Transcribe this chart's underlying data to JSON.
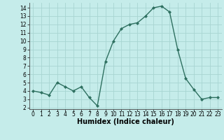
{
  "x": [
    0,
    1,
    2,
    3,
    4,
    5,
    6,
    7,
    8,
    9,
    10,
    11,
    12,
    13,
    14,
    15,
    16,
    17,
    18,
    19,
    20,
    21,
    22,
    23
  ],
  "y": [
    4,
    3.8,
    3.5,
    5,
    4.5,
    4,
    4.5,
    3.2,
    2.2,
    7.5,
    10,
    11.5,
    12,
    12.2,
    13,
    14,
    14.2,
    13.5,
    9,
    5.5,
    4.2,
    3,
    3.2,
    3.2
  ],
  "line_color": "#2e7060",
  "marker": "D",
  "marker_size": 2.0,
  "bg_color": "#c5ecea",
  "grid_color": "#a8d5d2",
  "xlabel": "Humidex (Indice chaleur)",
  "ylim": [
    1.8,
    14.6
  ],
  "xlim": [
    -0.5,
    23.5
  ],
  "yticks": [
    2,
    3,
    4,
    5,
    6,
    7,
    8,
    9,
    10,
    11,
    12,
    13,
    14
  ],
  "xticks": [
    0,
    1,
    2,
    3,
    4,
    5,
    6,
    7,
    8,
    9,
    10,
    11,
    12,
    13,
    14,
    15,
    16,
    17,
    18,
    19,
    20,
    21,
    22,
    23
  ],
  "tick_fontsize": 5.5,
  "label_fontsize": 7,
  "line_width": 1.0
}
